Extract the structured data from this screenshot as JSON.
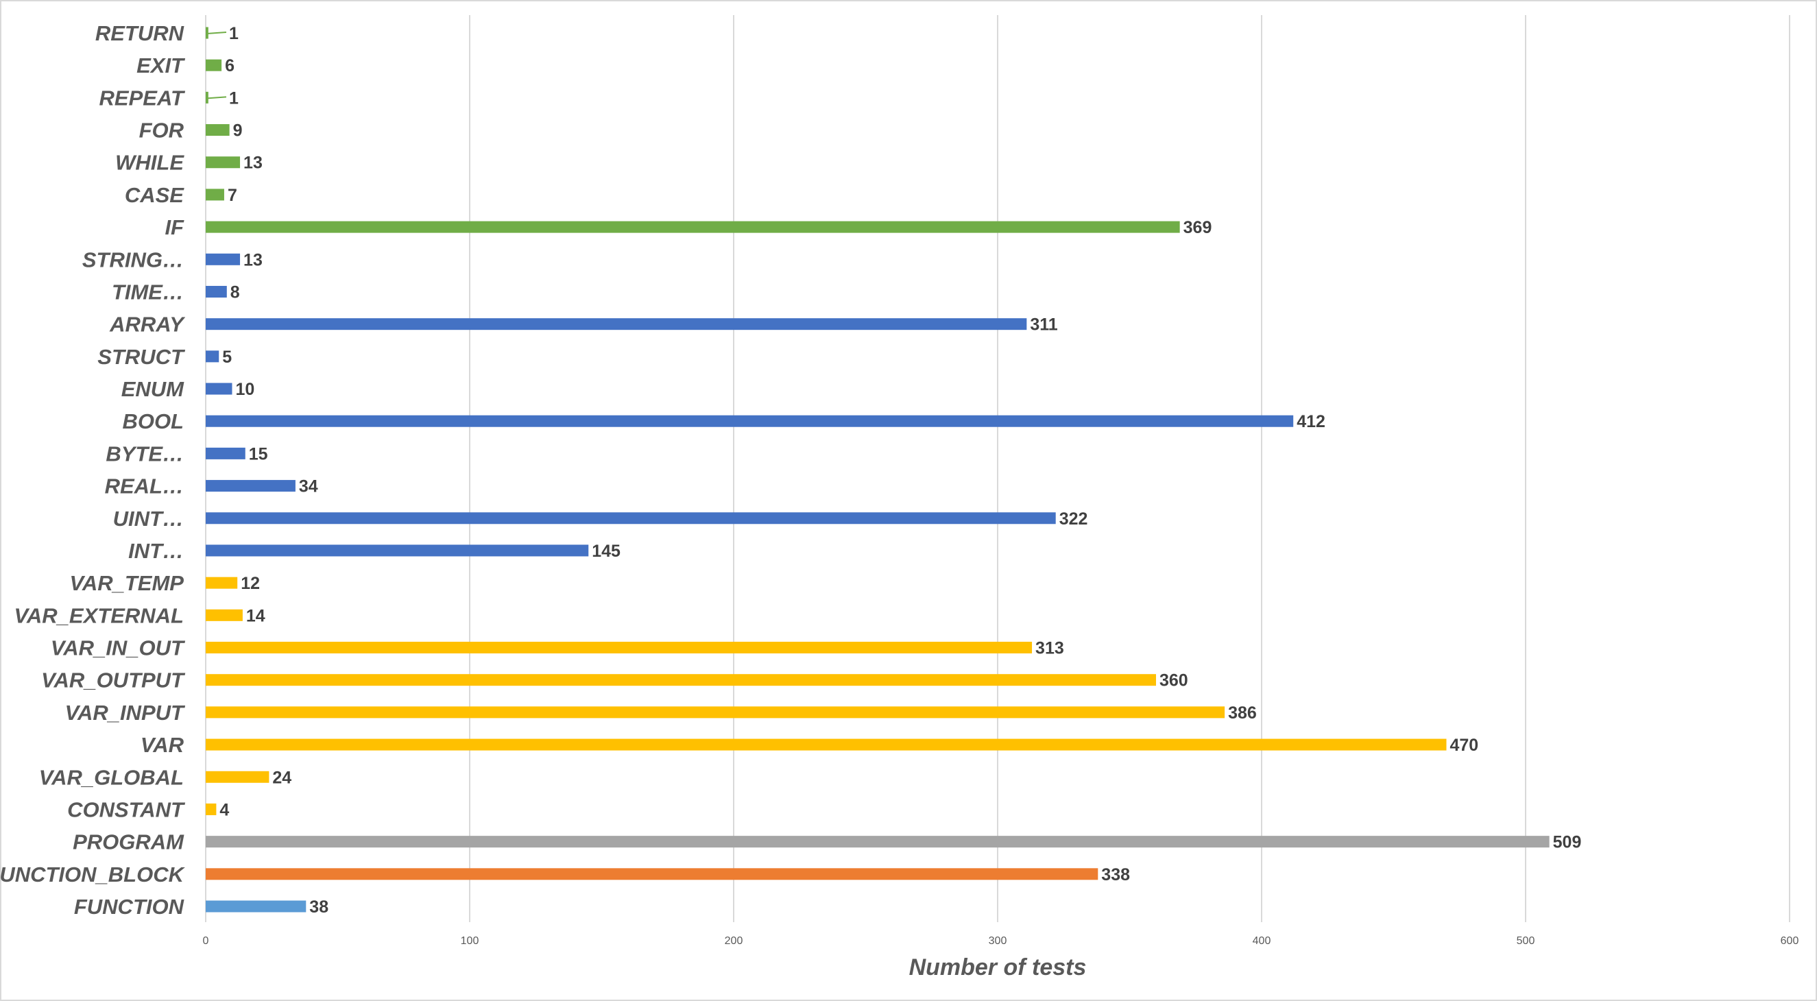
{
  "chart_data": {
    "type": "bar",
    "orientation": "horizontal",
    "title": "",
    "xlabel": "Number of tests",
    "ylabel": "",
    "xlim": [
      0,
      600
    ],
    "xticks": [
      0,
      100,
      200,
      300,
      400,
      500,
      600
    ],
    "grid": true,
    "legend": "none",
    "colors": {
      "pou_function": "#5b9bd5",
      "pou_function_block": "#ed7d31",
      "pou_program": "#a5a5a5",
      "variables": "#ffc000",
      "data_types": "#4472c4",
      "control": "#70ad47",
      "grid": "#d9d9d9",
      "text": "#595959",
      "value_text": "#404040"
    },
    "categories": [
      {
        "label": "RETURN",
        "value": 1,
        "group": "control"
      },
      {
        "label": "EXIT",
        "value": 6,
        "group": "control"
      },
      {
        "label": "REPEAT",
        "value": 1,
        "group": "control"
      },
      {
        "label": "FOR",
        "value": 9,
        "group": "control"
      },
      {
        "label": "WHILE",
        "value": 13,
        "group": "control"
      },
      {
        "label": "CASE",
        "value": 7,
        "group": "control"
      },
      {
        "label": "IF",
        "value": 369,
        "group": "control"
      },
      {
        "label": "STRING…",
        "value": 13,
        "group": "data_types"
      },
      {
        "label": "TIME…",
        "value": 8,
        "group": "data_types"
      },
      {
        "label": "ARRAY",
        "value": 311,
        "group": "data_types"
      },
      {
        "label": "STRUCT",
        "value": 5,
        "group": "data_types"
      },
      {
        "label": "ENUM",
        "value": 10,
        "group": "data_types"
      },
      {
        "label": "BOOL",
        "value": 412,
        "group": "data_types"
      },
      {
        "label": "BYTE…",
        "value": 15,
        "group": "data_types"
      },
      {
        "label": "REAL…",
        "value": 34,
        "group": "data_types"
      },
      {
        "label": "UINT…",
        "value": 322,
        "group": "data_types"
      },
      {
        "label": "INT…",
        "value": 145,
        "group": "data_types"
      },
      {
        "label": "VAR_TEMP",
        "value": 12,
        "group": "variables"
      },
      {
        "label": "VAR_EXTERNAL",
        "value": 14,
        "group": "variables"
      },
      {
        "label": "VAR_IN_OUT",
        "value": 313,
        "group": "variables"
      },
      {
        "label": "VAR_OUTPUT",
        "value": 360,
        "group": "variables"
      },
      {
        "label": "VAR_INPUT",
        "value": 386,
        "group": "variables"
      },
      {
        "label": "VAR",
        "value": 470,
        "group": "variables"
      },
      {
        "label": "VAR_GLOBAL",
        "value": 24,
        "group": "variables"
      },
      {
        "label": "CONSTANT",
        "value": 4,
        "group": "variables"
      },
      {
        "label": "PROGRAM",
        "value": 509,
        "group": "pou_program"
      },
      {
        "label": "FUNCTION_BLOCK",
        "value": 338,
        "group": "pou_function_block"
      },
      {
        "label": "FUNCTION",
        "value": 38,
        "group": "pou_function"
      }
    ]
  }
}
